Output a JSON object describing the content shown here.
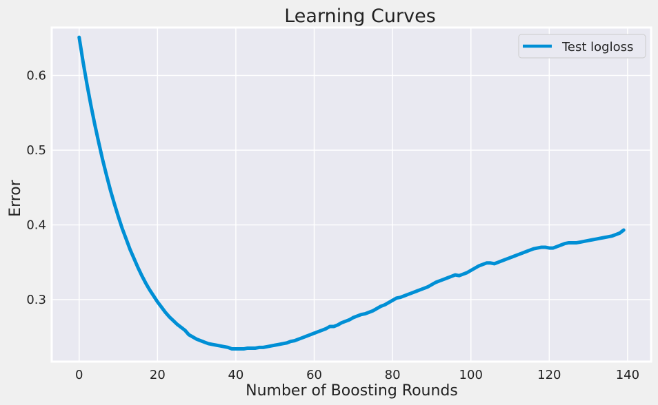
{
  "colors": {
    "figure_bg": "#f0f0f0",
    "plot_bg": "#e9e9f1",
    "grid": "#ffffff",
    "series": "#008fd5",
    "text": "#222222"
  },
  "chart_data": {
    "type": "line",
    "title": "Learning Curves",
    "xlabel": "Number of Boosting Rounds",
    "ylabel": "Error",
    "xlim": [
      -7,
      146
    ],
    "ylim": [
      0.217,
      0.664
    ],
    "xticks": [
      0,
      20,
      40,
      60,
      80,
      100,
      120,
      140
    ],
    "xtick_labels": [
      "0",
      "20",
      "40",
      "60",
      "80",
      "100",
      "120",
      "140"
    ],
    "yticks": [
      0.3,
      0.4,
      0.5,
      0.6
    ],
    "ytick_labels": [
      "0.3",
      "0.4",
      "0.5",
      "0.6"
    ],
    "grid": true,
    "legend": {
      "placement": "top-right",
      "entries": [
        "Test logloss"
      ]
    },
    "series": [
      {
        "name": "Test logloss",
        "x": [
          0,
          1,
          2,
          3,
          4,
          5,
          6,
          7,
          8,
          9,
          10,
          11,
          12,
          13,
          14,
          15,
          16,
          17,
          18,
          19,
          20,
          21,
          22,
          23,
          24,
          25,
          26,
          27,
          28,
          29,
          30,
          31,
          32,
          33,
          34,
          35,
          36,
          37,
          38,
          39,
          40,
          41,
          42,
          43,
          44,
          45,
          46,
          47,
          48,
          49,
          50,
          51,
          52,
          53,
          54,
          55,
          56,
          57,
          58,
          59,
          60,
          61,
          62,
          63,
          64,
          65,
          66,
          67,
          68,
          69,
          70,
          71,
          72,
          73,
          74,
          75,
          76,
          77,
          78,
          79,
          80,
          81,
          82,
          83,
          84,
          85,
          86,
          87,
          88,
          89,
          90,
          91,
          92,
          93,
          94,
          95,
          96,
          97,
          98,
          99,
          100,
          101,
          102,
          103,
          104,
          105,
          106,
          107,
          108,
          109,
          110,
          111,
          112,
          113,
          114,
          115,
          116,
          117,
          118,
          119,
          120,
          121,
          122,
          123,
          124,
          125,
          126,
          127,
          128,
          129,
          130,
          131,
          132,
          133,
          134,
          135,
          136,
          137,
          138,
          139
        ],
        "values": [
          0.651,
          0.618,
          0.588,
          0.56,
          0.534,
          0.51,
          0.487,
          0.466,
          0.446,
          0.428,
          0.411,
          0.395,
          0.381,
          0.367,
          0.355,
          0.343,
          0.332,
          0.322,
          0.313,
          0.305,
          0.297,
          0.29,
          0.283,
          0.277,
          0.272,
          0.267,
          0.263,
          0.259,
          0.253,
          0.25,
          0.247,
          0.245,
          0.243,
          0.241,
          0.24,
          0.239,
          0.238,
          0.237,
          0.236,
          0.234,
          0.234,
          0.234,
          0.234,
          0.235,
          0.235,
          0.235,
          0.236,
          0.236,
          0.237,
          0.238,
          0.239,
          0.24,
          0.241,
          0.242,
          0.244,
          0.245,
          0.247,
          0.249,
          0.251,
          0.253,
          0.255,
          0.257,
          0.259,
          0.261,
          0.264,
          0.264,
          0.266,
          0.269,
          0.271,
          0.273,
          0.276,
          0.278,
          0.28,
          0.281,
          0.283,
          0.285,
          0.288,
          0.291,
          0.293,
          0.296,
          0.299,
          0.302,
          0.303,
          0.305,
          0.307,
          0.309,
          0.311,
          0.313,
          0.315,
          0.317,
          0.32,
          0.323,
          0.325,
          0.327,
          0.329,
          0.331,
          0.333,
          0.332,
          0.334,
          0.336,
          0.339,
          0.342,
          0.345,
          0.347,
          0.349,
          0.349,
          0.348,
          0.35,
          0.352,
          0.354,
          0.356,
          0.358,
          0.36,
          0.362,
          0.364,
          0.366,
          0.368,
          0.369,
          0.37,
          0.37,
          0.369,
          0.369,
          0.371,
          0.373,
          0.375,
          0.376,
          0.376,
          0.376,
          0.377,
          0.378,
          0.379,
          0.38,
          0.381,
          0.382,
          0.383,
          0.384,
          0.385,
          0.387,
          0.389,
          0.393
        ]
      }
    ]
  }
}
